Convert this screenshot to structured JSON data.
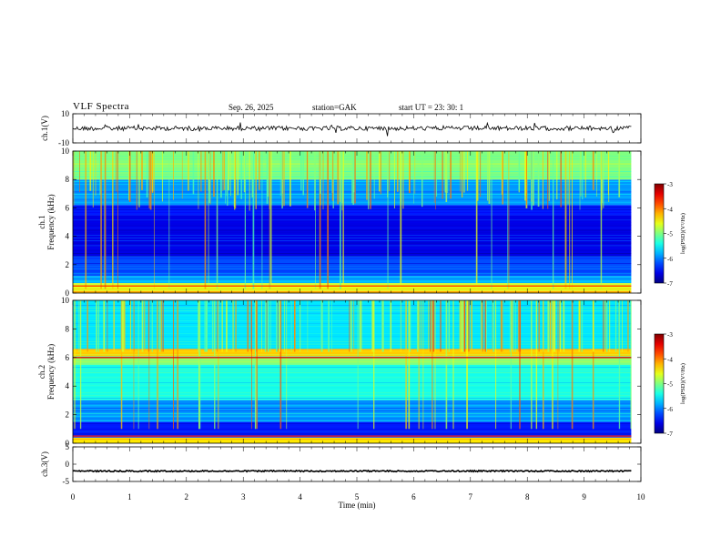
{
  "header": {
    "title": "VLF  Spectra",
    "date": "Sep. 26, 2025",
    "station": "station=GAK",
    "start": "start  UT  =    23: 30: 1"
  },
  "chart_data": {
    "type": "heatmap",
    "title": "VLF  Spectra",
    "xlabel": "Time  (min)",
    "xlim": [
      0,
      10
    ],
    "x_ticks": [
      "0",
      "1",
      "2",
      "3",
      "4",
      "5",
      "6",
      "7",
      "8",
      "9",
      "10"
    ],
    "data_end_min": 9.83,
    "panels": [
      {
        "id": "ch1-waveform",
        "type": "line",
        "ylabel": "ch.1(V)",
        "ylim": [
          -10,
          10
        ],
        "y_ticks": [
          "10",
          "-10"
        ],
        "baseline": 0
      },
      {
        "id": "ch1-spectrogram",
        "type": "heatmap",
        "ylabel": "ch.1",
        "ylabel2": "Frequency  (kHz)",
        "ylim": [
          0,
          10
        ],
        "y_ticks": [
          "0",
          "2",
          "4",
          "6",
          "8",
          "10"
        ],
        "colorbar": {
          "label": "log(PSD)(V²/Hz)",
          "range": [
            -7,
            -3
          ],
          "ticks": [
            "-3",
            "-4",
            "-5",
            "-6",
            "-7"
          ]
        },
        "bands": [
          {
            "from": 0.0,
            "to": 0.15,
            "level": -4.2
          },
          {
            "from": 0.15,
            "to": 0.7,
            "level": -4.6
          },
          {
            "from": 0.7,
            "to": 1.2,
            "level": -5.8
          },
          {
            "from": 1.2,
            "to": 2.6,
            "level": -6.2
          },
          {
            "from": 2.6,
            "to": 5.5,
            "level": -6.6
          },
          {
            "from": 5.5,
            "to": 6.2,
            "level": -6.4
          },
          {
            "from": 6.2,
            "to": 8.0,
            "level": -5.9
          },
          {
            "from": 8.0,
            "to": 10.0,
            "level": -5.0
          }
        ]
      },
      {
        "id": "ch2-spectrogram",
        "type": "heatmap",
        "ylabel": "ch.2",
        "ylabel2": "Frequency  (kHz)",
        "ylim": [
          0,
          10
        ],
        "y_ticks": [
          "0",
          "2",
          "4",
          "6",
          "8",
          "10"
        ],
        "colorbar": {
          "label": "log(PSD)(V²/Hz)",
          "range": [
            -7,
            -3
          ],
          "ticks": [
            "-3",
            "-4",
            "-5",
            "-6",
            "-7"
          ]
        },
        "bands": [
          {
            "from": 0.0,
            "to": 0.4,
            "level": -4.4
          },
          {
            "from": 0.4,
            "to": 1.5,
            "level": -6.4
          },
          {
            "from": 1.5,
            "to": 3.0,
            "level": -5.9
          },
          {
            "from": 3.0,
            "to": 5.5,
            "level": -5.4
          },
          {
            "from": 5.5,
            "to": 6.1,
            "level": -5.0
          },
          {
            "from": 6.1,
            "to": 6.6,
            "level": -4.3
          },
          {
            "from": 6.6,
            "to": 10.0,
            "level": -5.6
          }
        ]
      },
      {
        "id": "ch3-waveform",
        "type": "line",
        "ylabel": "ch.3(V)",
        "ylim": [
          -5,
          5
        ],
        "y_ticks": [
          "5",
          "0",
          "-5"
        ],
        "baseline": -2
      }
    ]
  }
}
